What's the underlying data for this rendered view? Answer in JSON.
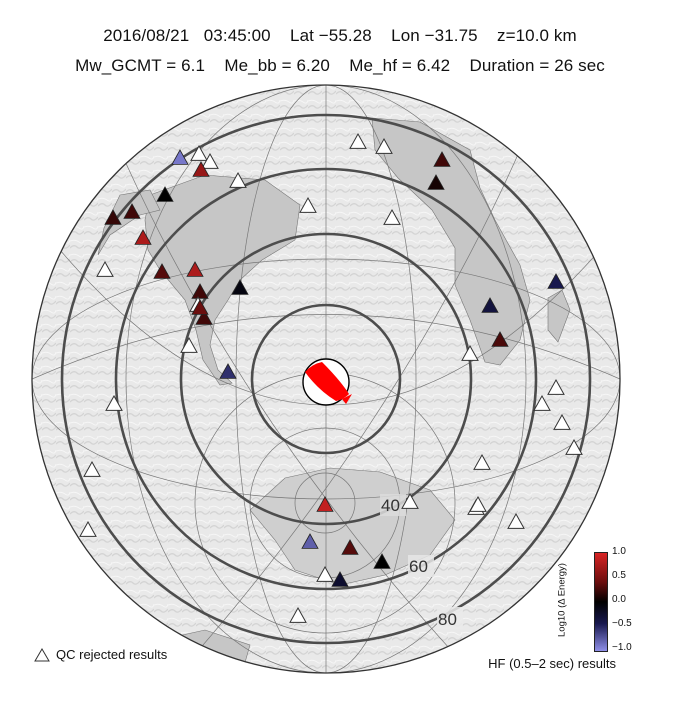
{
  "header": {
    "line1": "2016/08/21   03:45:00    Lat −55.28    Lon −31.75    z=10.0 km",
    "line2": "Mw_GCMT = 6.1    Me_bb = 6.20    Me_hf = 6.42    Duration = 26 sec"
  },
  "map": {
    "projection": "azimuthal-equidistant",
    "distance_rings_deg": [
      20,
      40,
      60,
      80
    ],
    "ring_labels": [
      "40",
      "60",
      "80"
    ],
    "focal_mechanism_color": "#ff0000",
    "land_color": "#c8c8c8"
  },
  "colorbar": {
    "label": "Log10 (Δ Energy)",
    "ticks": [
      "1.0",
      "0.5",
      "0.0",
      "−0.5",
      "−1.0"
    ],
    "range": [
      -1.0,
      1.0
    ],
    "colors": [
      "#d82424",
      "#6a0e0e",
      "#000000",
      "#18184e",
      "#8f8fe8"
    ]
  },
  "legend": {
    "qc_label": "QC rejected results",
    "hf_label": "HF (0.5–2 sec) results"
  },
  "stations": [
    {
      "id": "s1",
      "value": -0.9,
      "qc": false
    },
    {
      "id": "s2",
      "value": null,
      "qc": true
    },
    {
      "id": "s3",
      "value": null,
      "qc": true
    },
    {
      "id": "s4",
      "value": 0.7,
      "qc": false
    },
    {
      "id": "s5",
      "value": null,
      "qc": true
    },
    {
      "id": "s6",
      "value": 0.0,
      "qc": false
    },
    {
      "id": "s7",
      "value": 0.3,
      "qc": false
    },
    {
      "id": "s8",
      "value": 0.25,
      "qc": false
    },
    {
      "id": "s9",
      "value": 0.8,
      "qc": false
    },
    {
      "id": "s10",
      "value": null,
      "qc": true
    },
    {
      "id": "s11",
      "value": 0.4,
      "qc": false
    },
    {
      "id": "s12",
      "value": 0.8,
      "qc": false
    },
    {
      "id": "s13",
      "value": 0.3,
      "qc": false
    },
    {
      "id": "s14",
      "value": -0.1,
      "qc": false
    },
    {
      "id": "s15",
      "value": null,
      "qc": true
    },
    {
      "id": "s16",
      "value": 0.3,
      "qc": false
    },
    {
      "id": "s17",
      "value": 0.5,
      "qc": false
    },
    {
      "id": "s18",
      "value": null,
      "qc": true
    },
    {
      "id": "s19",
      "value": -0.6,
      "qc": false
    },
    {
      "id": "s20",
      "value": null,
      "qc": true
    },
    {
      "id": "s21",
      "value": null,
      "qc": true
    },
    {
      "id": "s22",
      "value": null,
      "qc": true
    },
    {
      "id": "s23",
      "value": null,
      "qc": true
    },
    {
      "id": "s24",
      "value": 0.3,
      "qc": false
    },
    {
      "id": "s25",
      "value": 0.1,
      "qc": false
    },
    {
      "id": "s26",
      "value": null,
      "qc": true
    },
    {
      "id": "s27",
      "value": null,
      "qc": true
    },
    {
      "id": "s28",
      "value": -0.4,
      "qc": false
    },
    {
      "id": "s29",
      "value": -0.5,
      "qc": false
    },
    {
      "id": "s30",
      "value": 0.35,
      "qc": false
    },
    {
      "id": "s31",
      "value": null,
      "qc": true
    },
    {
      "id": "s32",
      "value": null,
      "qc": true
    },
    {
      "id": "s33",
      "value": null,
      "qc": true
    },
    {
      "id": "s34",
      "value": null,
      "qc": true
    },
    {
      "id": "s35",
      "value": null,
      "qc": true
    },
    {
      "id": "s36",
      "value": null,
      "qc": true
    },
    {
      "id": "s37",
      "value": null,
      "qc": true
    },
    {
      "id": "s38",
      "value": 0.9,
      "qc": false
    },
    {
      "id": "s39",
      "value": null,
      "qc": true
    },
    {
      "id": "s40",
      "value": null,
      "qc": true
    },
    {
      "id": "s41",
      "value": -0.8,
      "qc": false
    },
    {
      "id": "s42",
      "value": 0.4,
      "qc": false
    },
    {
      "id": "s43",
      "value": 0.0,
      "qc": false
    },
    {
      "id": "s44",
      "value": -0.3,
      "qc": false
    },
    {
      "id": "s45",
      "value": null,
      "qc": true
    },
    {
      "id": "s46",
      "value": null,
      "qc": true
    },
    {
      "id": "s47",
      "value": null,
      "qc": true
    },
    {
      "id": "s48",
      "value": null,
      "qc": true
    }
  ]
}
